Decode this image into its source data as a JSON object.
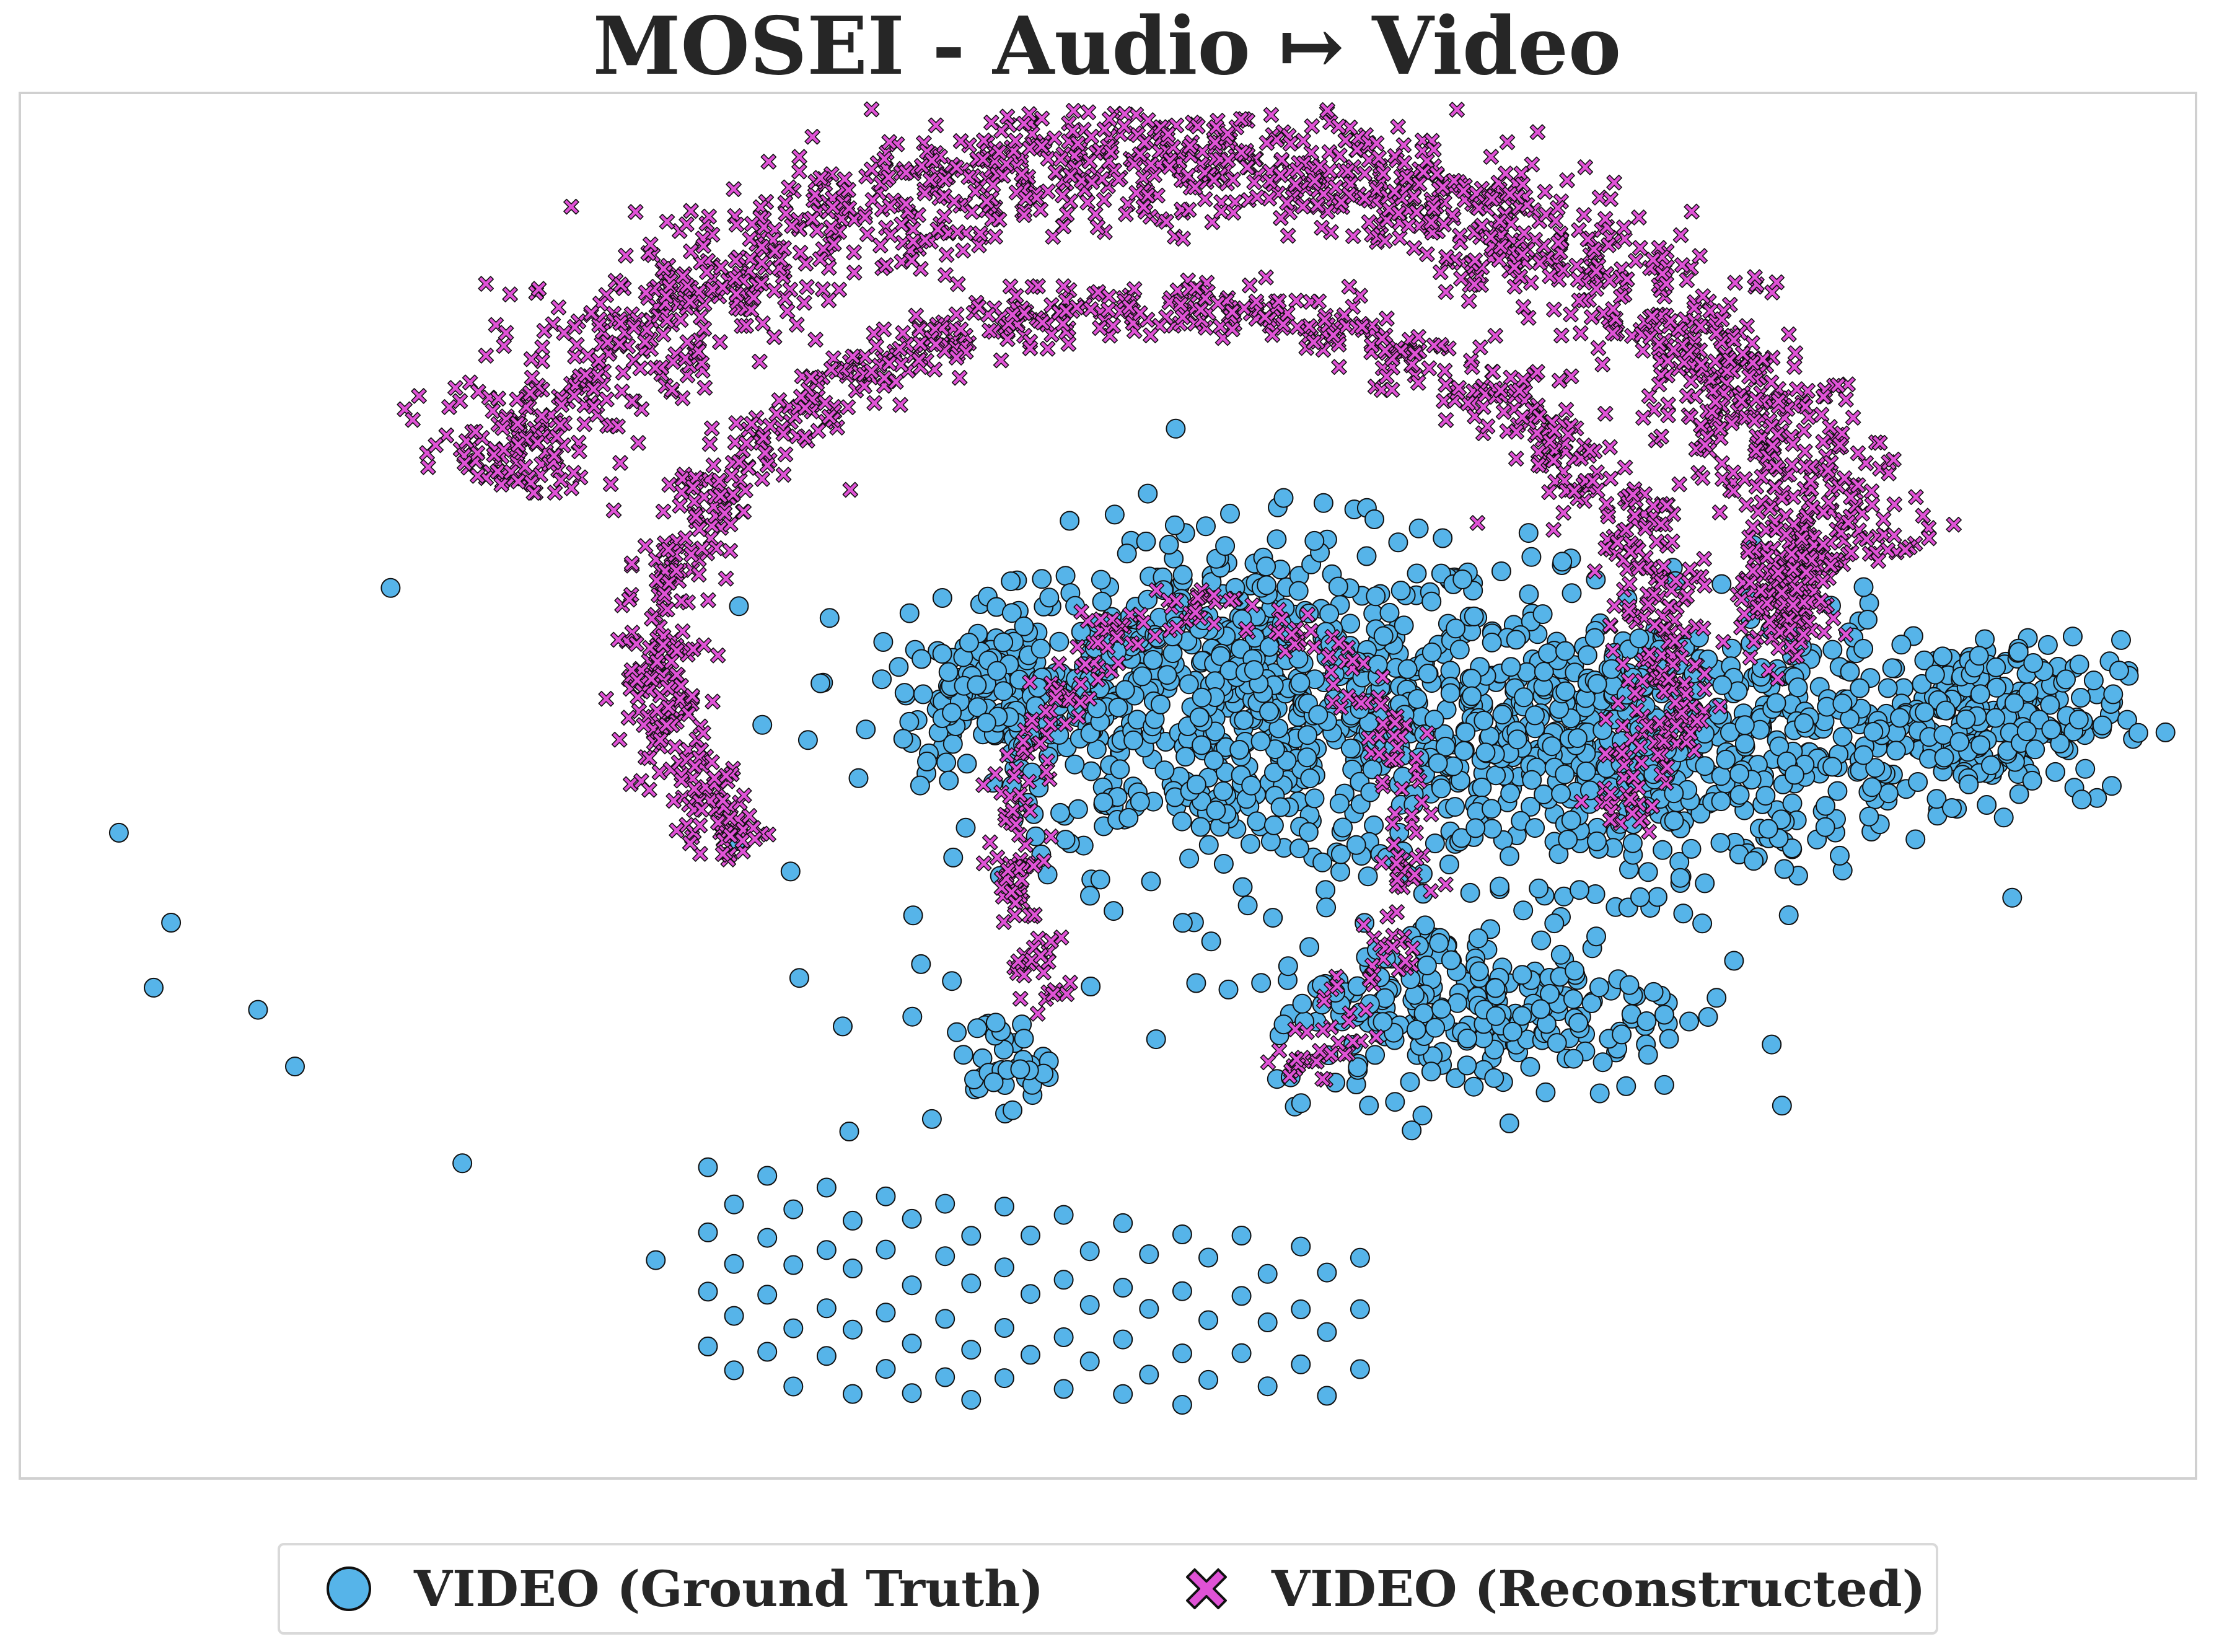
{
  "colors": {
    "ground_truth": "#56b4e9",
    "reconstructed": "#e052d6",
    "marker_edge": "#111111",
    "frame": "#d0d0d0"
  },
  "chart_data": {
    "type": "scatter",
    "title": "MOSEI - Audio ↦ Video",
    "xlabel": "",
    "ylabel": "",
    "xlim": [
      0,
      100
    ],
    "ylim": [
      0,
      100
    ],
    "grid": false,
    "axes_ticks": false,
    "legend_position": "bottom-center",
    "series": [
      {
        "name": "VIDEO (Ground Truth)",
        "marker": "circle",
        "color": "#56b4e9",
        "clusters": [
          {
            "cx": 56,
            "cy": 56,
            "rx": 12,
            "ry": 11,
            "count": 700
          },
          {
            "cx": 74,
            "cy": 53,
            "rx": 12,
            "ry": 9,
            "count": 700
          },
          {
            "cx": 90,
            "cy": 55,
            "rx": 6,
            "ry": 5,
            "count": 260
          },
          {
            "cx": 67,
            "cy": 34,
            "rx": 9,
            "ry": 6,
            "count": 260
          },
          {
            "cx": 45,
            "cy": 57,
            "rx": 4,
            "ry": 4,
            "count": 160
          },
          {
            "cx": 45,
            "cy": 30,
            "rx": 2,
            "ry": 3,
            "count": 40
          }
        ],
        "points": [
          [
            4.5,
            46.6
          ],
          [
            6.9,
            40.1
          ],
          [
            6.1,
            35.4
          ],
          [
            10.9,
            33.8
          ],
          [
            12.6,
            29.7
          ],
          [
            20.3,
            22.7
          ],
          [
            17,
            64.3
          ],
          [
            29.2,
            15.7
          ],
          [
            34.1,
            54.4
          ],
          [
            32.9,
            46
          ],
          [
            36.2,
            53.3
          ],
          [
            35.4,
            43.8
          ],
          [
            35.8,
            36.1
          ],
          [
            37.8,
            32.6
          ],
          [
            41,
            33.3
          ],
          [
            38.1,
            25
          ],
          [
            41.9,
            25.9
          ],
          [
            47.3,
            63.6
          ],
          [
            41.4,
            37.1
          ],
          [
            57.3,
            64.5
          ],
          [
            59.5,
            67.7
          ],
          [
            61.9,
            66.6
          ],
          [
            60.6,
            64.4
          ],
          [
            65.4,
            67.9
          ],
          [
            64.3,
            68.6
          ],
          [
            68.1,
            65.5
          ],
          [
            70.9,
            66.2
          ],
          [
            73.9,
            63.5
          ],
          [
            76.1,
            64.8
          ],
          [
            80.6,
            61.3
          ],
          [
            86.5,
            60.2
          ],
          [
            94.8,
            49
          ],
          [
            91.6,
            41.9
          ]
        ],
        "grid_cluster": {
          "comment": "regular lattice of points below the main cluster",
          "x_range": [
            31.6,
            61.6
          ],
          "y_range": [
            4.8,
            22.1
          ],
          "count": 95
        }
      },
      {
        "name": "VIDEO (Reconstructed)",
        "marker": "x",
        "color": "#e052d6",
        "clusters": [
          {
            "arc": "outer",
            "cx": 52.5,
            "cy": 59.4,
            "rx": 32.1,
            "ry": 35.7,
            "angle_from": 200,
            "angle_to": 350,
            "width": 4.6,
            "count": 1500
          },
          {
            "arc": "inner",
            "cx": 52.5,
            "cy": 59.4,
            "rx": 23.2,
            "ry": 25.3,
            "angle_from": 145,
            "angle_to": 28,
            "width": 2.2,
            "count": 900
          },
          {
            "arc": "middle",
            "cx": 54.7,
            "cy": 45.6,
            "rx": 9.1,
            "ry": 17.6,
            "angle_from": 140,
            "angle_to": 72,
            "width": 1.6,
            "count": 300
          },
          {
            "arc": "right_tail",
            "cx": 81.3,
            "cy": 64.1,
            "rx": 2.2,
            "ry": 4.8,
            "count": 150
          }
        ],
        "points": [
          [
            73.3,
            63
          ],
          [
            73.1,
            61.6
          ],
          [
            72.4,
            65.5
          ],
          [
            67,
            69
          ],
          [
            70.5,
            68.5
          ],
          [
            75.8,
            57.7
          ],
          [
            76.4,
            55.3
          ],
          [
            76.8,
            53.8
          ],
          [
            76.1,
            56
          ],
          [
            77.1,
            54.7
          ]
        ]
      }
    ]
  }
}
